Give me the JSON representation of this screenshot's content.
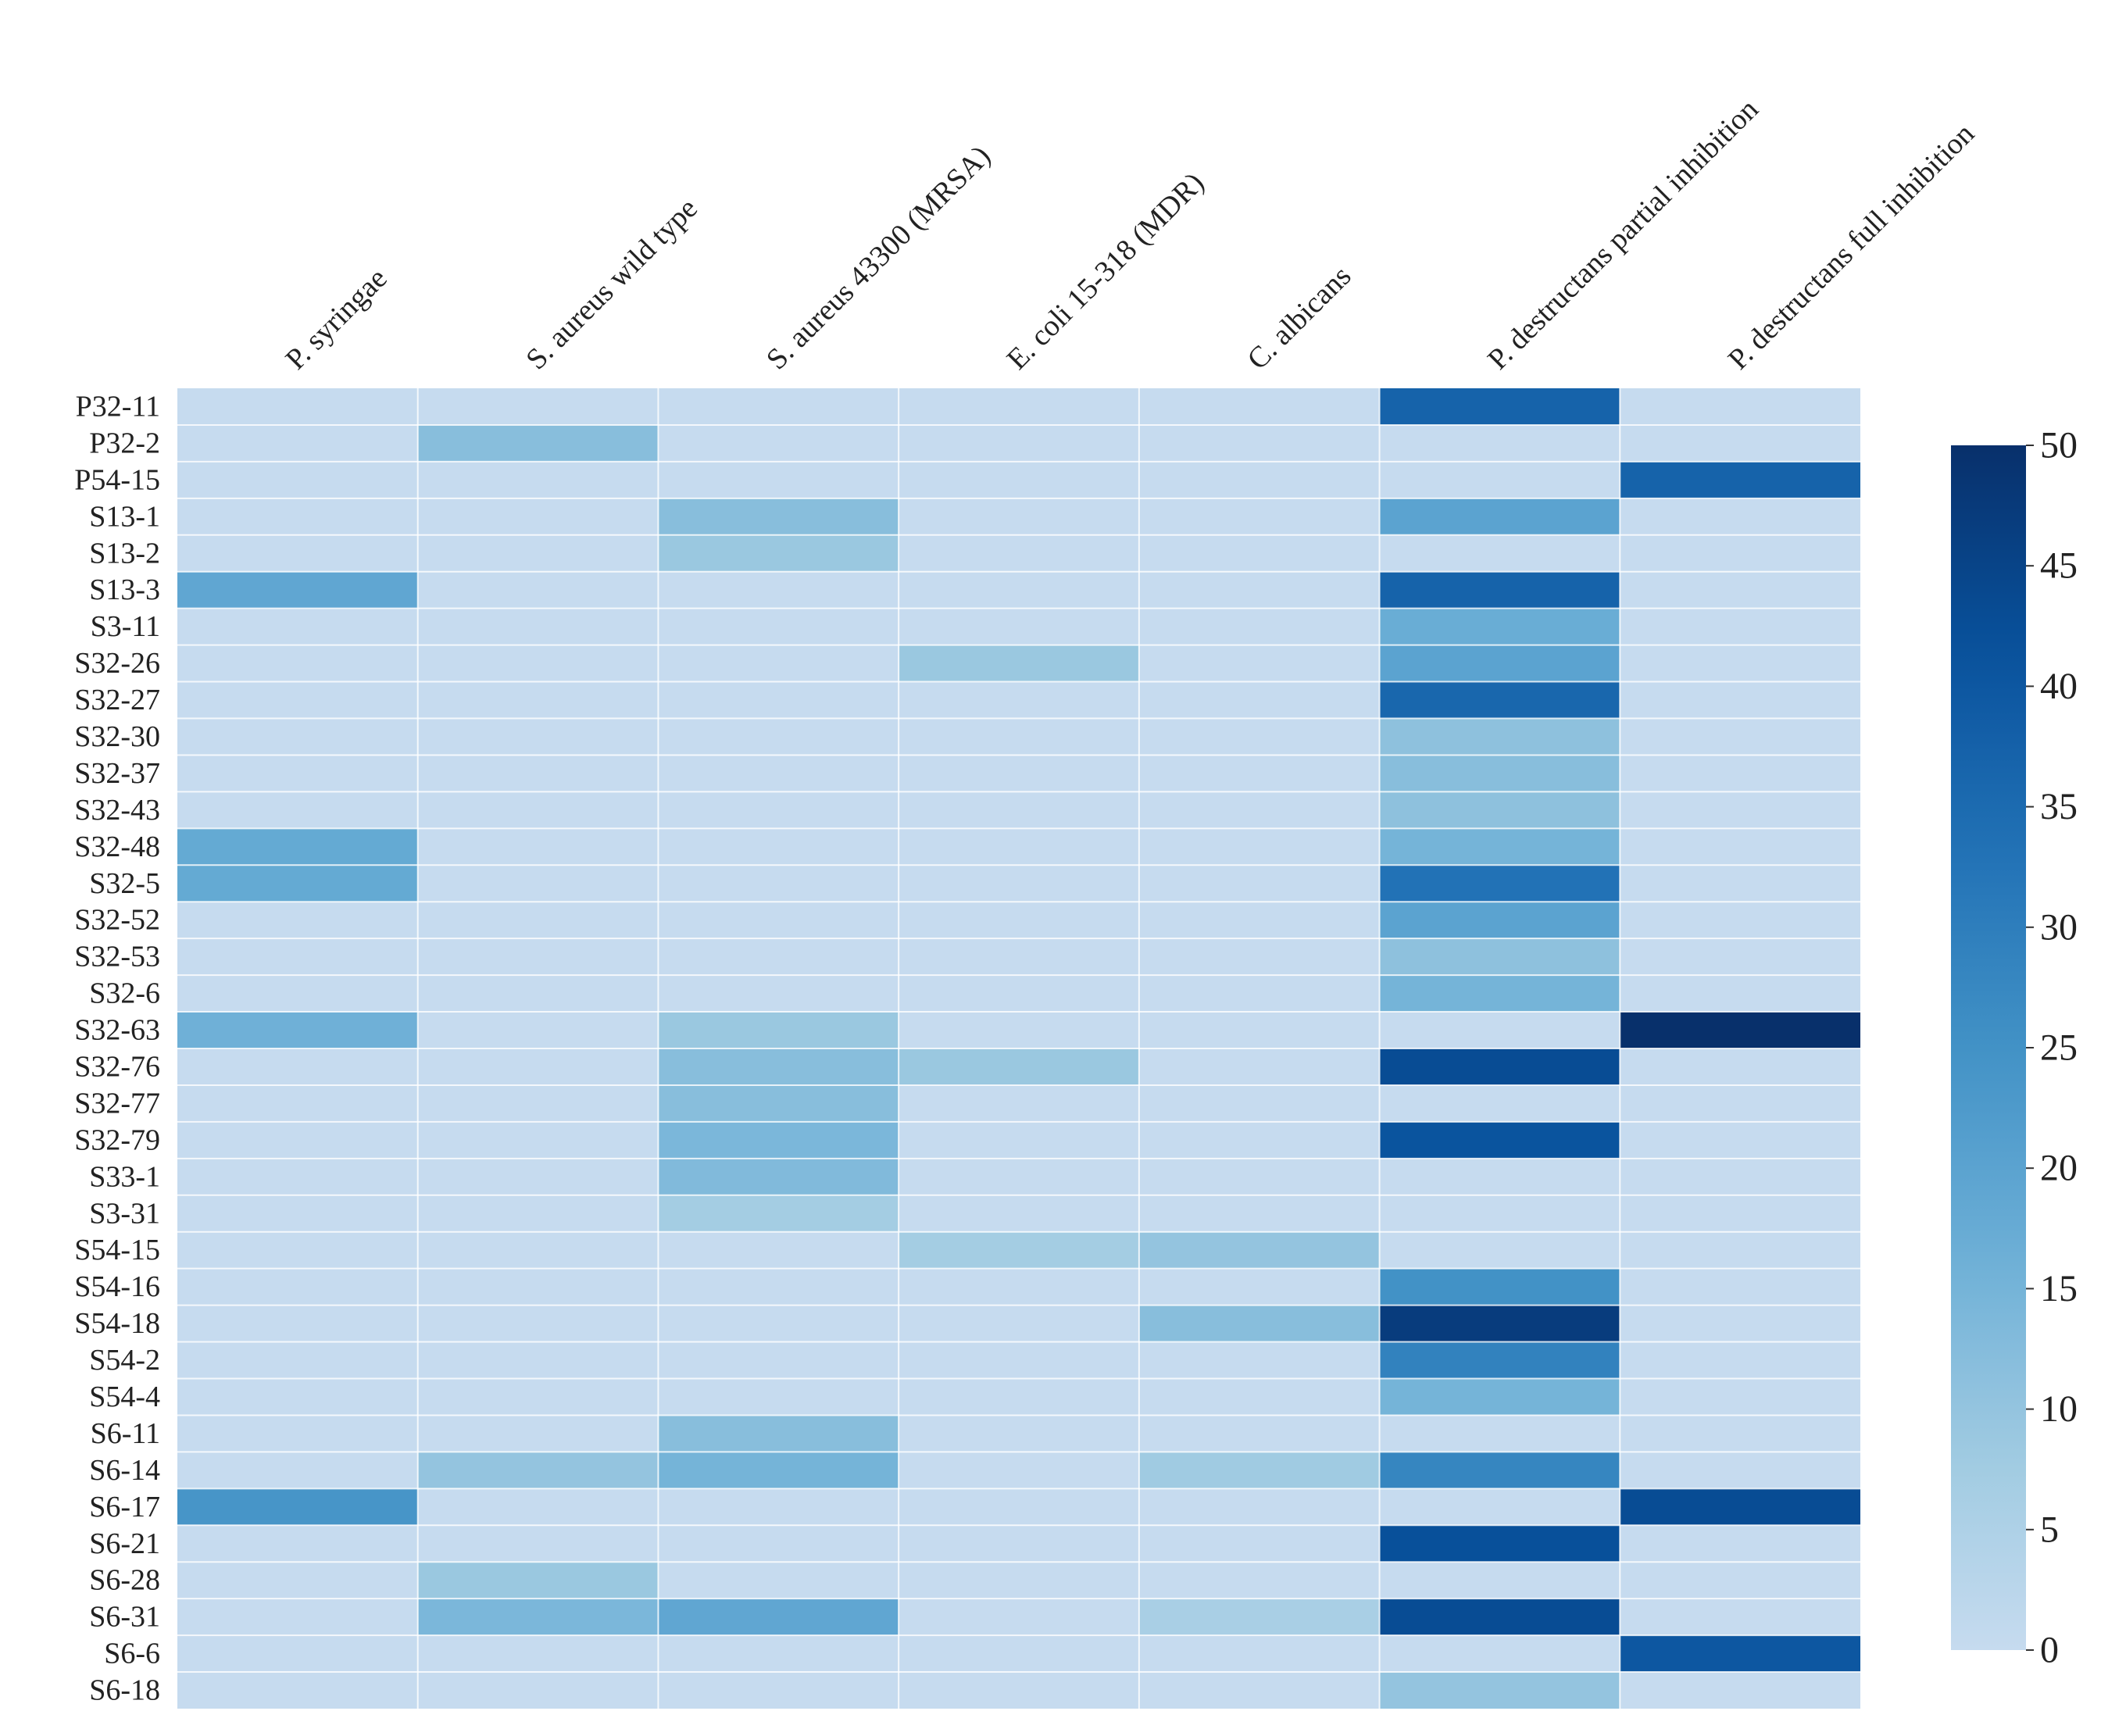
{
  "chart_data": {
    "type": "heatmap",
    "title": "",
    "xlabel": "",
    "ylabel": "",
    "columns": [
      "P. syringae",
      "S. aureus wild type",
      "S. aureus 43300 (MRSA)",
      "E. coli 15-318 (MDR)",
      "C. albicans",
      "P. destructans partial inhibition",
      "P. destructans full inhibition"
    ],
    "rows": [
      "P32-11",
      "P32-2",
      "P54-15",
      "S13-1",
      "S13-2",
      "S13-3",
      "S3-11",
      "S32-26",
      "S32-27",
      "S32-30",
      "S32-37",
      "S32-43",
      "S32-48",
      "S32-5",
      "S32-52",
      "S32-53",
      "S32-6",
      "S32-63",
      "S32-76",
      "S32-77",
      "S32-79",
      "S33-1",
      "S3-31",
      "S54-15",
      "S54-16",
      "S54-18",
      "S54-2",
      "S54-4",
      "S6-11",
      "S6-14",
      "S6-17",
      "S6-21",
      "S6-28",
      "S6-31",
      "S6-6",
      "S6-18"
    ],
    "values": [
      [
        0,
        0,
        0,
        0,
        0,
        37,
        0
      ],
      [
        0,
        12,
        0,
        0,
        0,
        0,
        0
      ],
      [
        0,
        0,
        0,
        0,
        0,
        0,
        37
      ],
      [
        0,
        0,
        12,
        0,
        0,
        20,
        0
      ],
      [
        0,
        0,
        9,
        0,
        0,
        0,
        0
      ],
      [
        19,
        0,
        0,
        0,
        0,
        37,
        0
      ],
      [
        0,
        0,
        0,
        0,
        0,
        17,
        0
      ],
      [
        0,
        0,
        0,
        9,
        0,
        20,
        0
      ],
      [
        0,
        0,
        0,
        0,
        0,
        36,
        0
      ],
      [
        0,
        0,
        0,
        0,
        0,
        11,
        0
      ],
      [
        0,
        0,
        0,
        0,
        0,
        12,
        0
      ],
      [
        0,
        0,
        0,
        0,
        0,
        11,
        0
      ],
      [
        18,
        0,
        0,
        0,
        0,
        15,
        0
      ],
      [
        18,
        0,
        0,
        0,
        0,
        33,
        0
      ],
      [
        0,
        0,
        0,
        0,
        0,
        20,
        0
      ],
      [
        0,
        0,
        0,
        0,
        0,
        11,
        0
      ],
      [
        0,
        0,
        0,
        0,
        0,
        15,
        0
      ],
      [
        16,
        0,
        9,
        0,
        0,
        0,
        50
      ],
      [
        0,
        0,
        12,
        9,
        0,
        43,
        0
      ],
      [
        0,
        0,
        12,
        0,
        0,
        0,
        0
      ],
      [
        0,
        0,
        14,
        0,
        0,
        41,
        0
      ],
      [
        0,
        0,
        13,
        0,
        0,
        0,
        0
      ],
      [
        0,
        0,
        7,
        0,
        0,
        0,
        0
      ],
      [
        0,
        0,
        0,
        7,
        10,
        0,
        0
      ],
      [
        0,
        0,
        0,
        0,
        0,
        25,
        0
      ],
      [
        0,
        0,
        0,
        0,
        12,
        47,
        0
      ],
      [
        0,
        0,
        0,
        0,
        0,
        29,
        0
      ],
      [
        0,
        0,
        0,
        0,
        0,
        15,
        0
      ],
      [
        0,
        0,
        12,
        0,
        0,
        0,
        0
      ],
      [
        0,
        10,
        15,
        0,
        8,
        28,
        0
      ],
      [
        24,
        0,
        0,
        0,
        0,
        0,
        43
      ],
      [
        0,
        0,
        0,
        0,
        0,
        42,
        0
      ],
      [
        0,
        9,
        0,
        0,
        0,
        0,
        0
      ],
      [
        0,
        14,
        19,
        0,
        6,
        43,
        0
      ],
      [
        0,
        0,
        0,
        0,
        0,
        0,
        40
      ],
      [
        0,
        0,
        0,
        0,
        0,
        10,
        0
      ]
    ],
    "colorbar": {
      "min": 0,
      "max": 50,
      "ticks": [
        0,
        5,
        10,
        15,
        20,
        25,
        30,
        35,
        40,
        45,
        50
      ],
      "tick_labels": [
        "0",
        "5",
        "10",
        "15",
        "20",
        "25",
        "30",
        "35",
        "40",
        "45",
        "50"
      ]
    },
    "colormap": [
      "#c6dbef",
      "#9ecae1",
      "#6baed6",
      "#4292c6",
      "#2171b5",
      "#08519c",
      "#08306b"
    ],
    "grid": true,
    "legend": "right"
  }
}
